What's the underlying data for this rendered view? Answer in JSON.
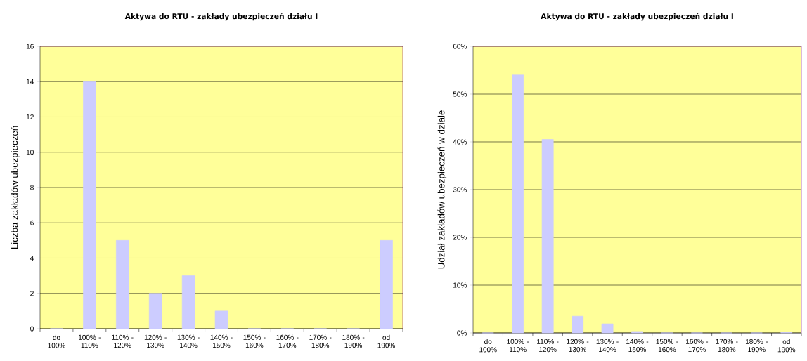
{
  "chart_data": [
    {
      "type": "bar",
      "title": "Aktywa do RTU - zakłady ubezpieczeń działu I",
      "ylabel": "Liczba zakładów ubezpieczeń",
      "categories": [
        "do 100%",
        "100% - 110%",
        "110% - 120%",
        "120% - 130%",
        "130% - 140%",
        "140% - 150%",
        "150% - 160%",
        "160% - 170%",
        "170% - 180%",
        "180% - 190%",
        "od 190%"
      ],
      "values": [
        0,
        14,
        5,
        2,
        3,
        1,
        0,
        0,
        0,
        0,
        5
      ],
      "color": "#ccccff",
      "ylim": [
        0,
        16
      ],
      "yticks": [
        0,
        2,
        4,
        6,
        8,
        10,
        12,
        14,
        16
      ],
      "grid": "y"
    },
    {
      "type": "bar",
      "title": "Aktywa do RTU - zakłady ubezpieczeń działu I",
      "ylabel": "Udział zakładów ubezpieczeń w dziale",
      "categories": [
        "do 100%",
        "100% - 110%",
        "110% - 120%",
        "120% - 130%",
        "130% - 140%",
        "140% - 150%",
        "150% - 160%",
        "160% - 170%",
        "170% - 180%",
        "180% - 190%",
        "od 190%"
      ],
      "values": [
        0,
        54.0,
        40.5,
        3.5,
        1.9,
        0.3,
        0,
        0,
        0,
        0,
        0.1
      ],
      "color": "#ccccff",
      "ylim": [
        0,
        60
      ],
      "yticks": [
        {
          "value": 0,
          "label": "0%"
        },
        {
          "value": 10,
          "label": "10%"
        },
        {
          "value": 20,
          "label": "20%"
        },
        {
          "value": 30,
          "label": "30%"
        },
        {
          "value": 40,
          "label": "40%"
        },
        {
          "value": 50,
          "label": "50%"
        },
        {
          "value": 60,
          "label": "60%"
        }
      ],
      "grid": "y"
    }
  ]
}
